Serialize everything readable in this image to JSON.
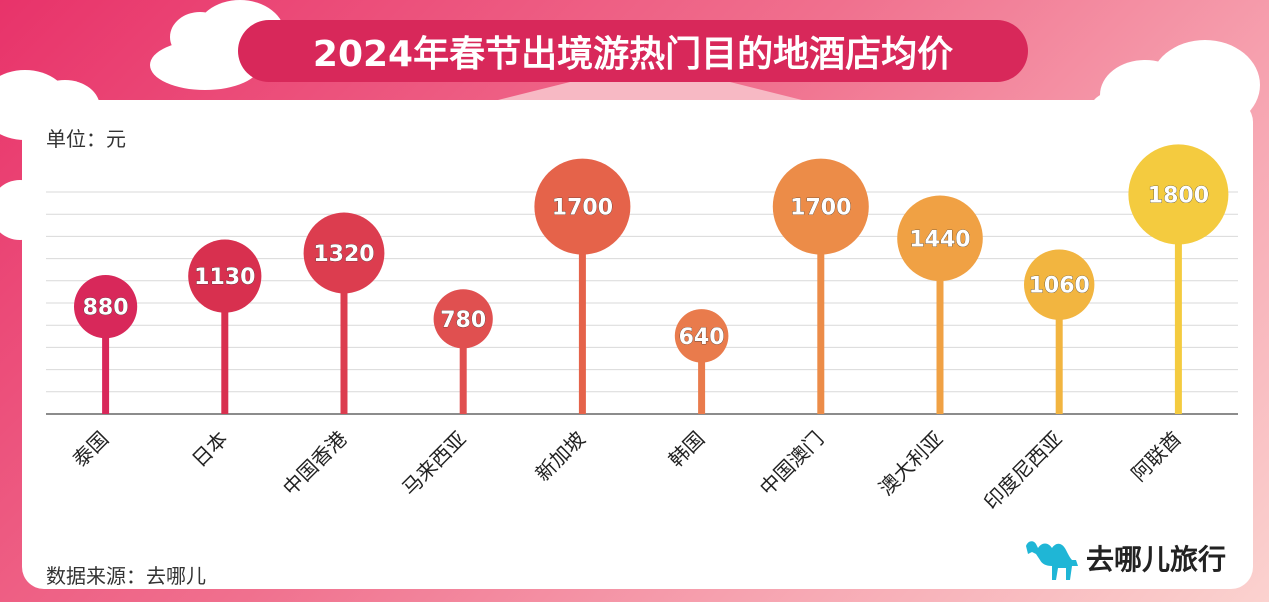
{
  "title": "2024年春节出境游热门目的地酒店均价",
  "unit_label": "单位：元",
  "source_label": "数据来源：去哪儿",
  "logo": {
    "icon": "camel-icon",
    "text": "去哪儿旅行",
    "color": "#1fb6d6"
  },
  "chart_data": {
    "type": "lollipop",
    "title": "2024年春节出境游热门目的地酒店均价",
    "unit": "元",
    "categories": [
      "泰国",
      "日本",
      "中国香港",
      "马来西亚",
      "新加坡",
      "韩国",
      "中国澳门",
      "澳大利亚",
      "印度尼西亚",
      "阿联酋"
    ],
    "values": [
      880,
      1130,
      1320,
      780,
      1700,
      640,
      1700,
      1440,
      1060,
      1800
    ],
    "labels": [
      "880",
      "1130",
      "1320",
      "780",
      "1700",
      "640",
      "1700",
      "1440",
      "1060",
      "1800"
    ],
    "colors": [
      "#d8285a",
      "#d8304f",
      "#dc3d4f",
      "#e05050",
      "#e5634a",
      "#e97b4c",
      "#ec8c48",
      "#f0a144",
      "#f2b540",
      "#f4cb3f"
    ],
    "ylim": [
      0,
      2000
    ],
    "grid": true
  }
}
